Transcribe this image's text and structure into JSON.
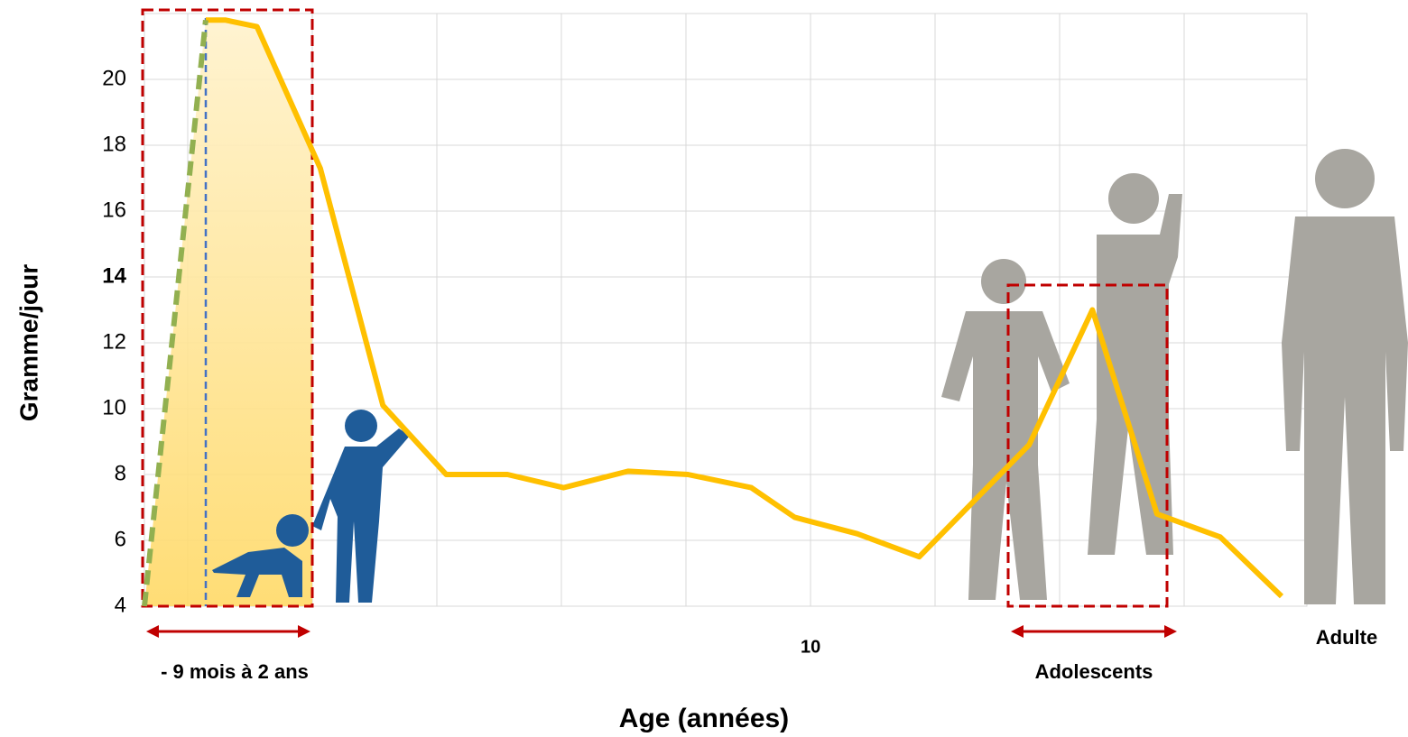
{
  "chart_data": {
    "type": "line",
    "x_label": "Age (années)",
    "y_label": "Gramme/jour",
    "xlim": [
      0,
      17.45
    ],
    "xticks": [
      10
    ],
    "ylim": [
      4,
      22
    ],
    "yticks": [
      4,
      6,
      8,
      10,
      12,
      14,
      16,
      18,
      20
    ],
    "grid": true,
    "series": [
      {
        "color": "#ffc000",
        "x": [
          0.92,
          1.22,
          1.69,
          2.64,
          3.58,
          4.53,
          5.45,
          6.29,
          7.26,
          8.16,
          9.11,
          9.76,
          10.7,
          11.63,
          13.28,
          14.23,
          15.2,
          16.15,
          17.07
        ],
        "values": [
          21.8,
          21.8,
          21.6,
          17.3,
          10.1,
          8.0,
          8.0,
          7.6,
          8.1,
          8.0,
          7.6,
          6.7,
          6.2,
          5.5,
          8.9,
          13.0,
          6.8,
          6.1,
          4.3
        ]
      },
      {
        "color": "#92b050",
        "dashed": true,
        "x": [
          0,
          0.92
        ],
        "values": [
          4,
          21.8
        ]
      }
    ],
    "annotations": [
      "- 9 mois à 2 ans",
      "Adolescents",
      "Adulte"
    ]
  }
}
